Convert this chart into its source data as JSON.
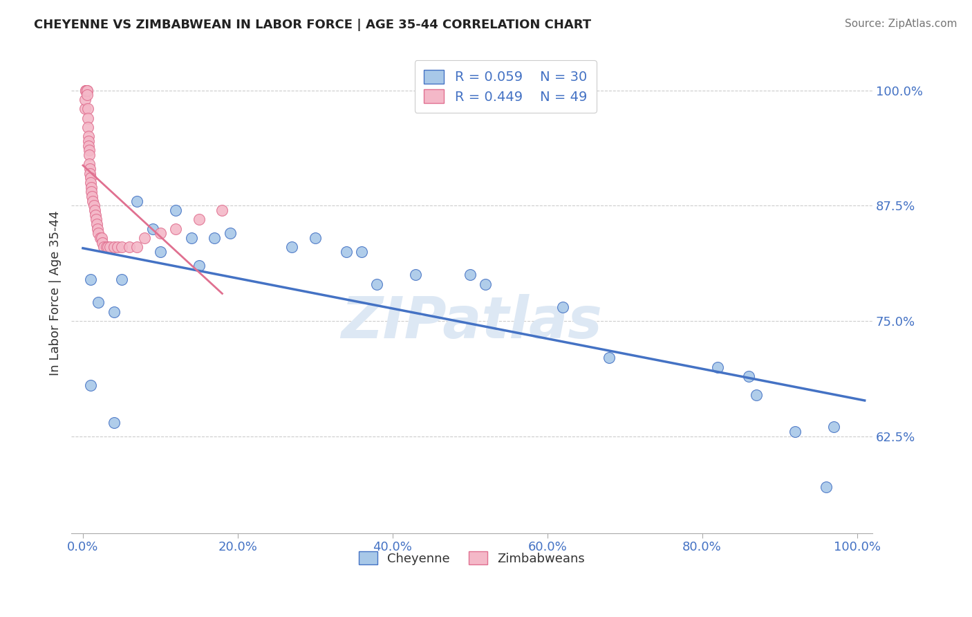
{
  "title": "CHEYENNE VS ZIMBABWEAN IN LABOR FORCE | AGE 35-44 CORRELATION CHART",
  "source": "Source: ZipAtlas.com",
  "ylabel": "In Labor Force | Age 35-44",
  "legend_cheyenne_R": "R = 0.059",
  "legend_cheyenne_N": "N = 30",
  "legend_zimbabwean_R": "R = 0.449",
  "legend_zimbabwean_N": "N = 49",
  "cheyenne_color": "#a8c8e8",
  "zimbabwean_color": "#f4b8c8",
  "cheyenne_line_color": "#4472c4",
  "zimbabwean_line_color": "#e07090",
  "legend_text_color": "#4472c4",
  "watermark": "ZIPatlas",
  "watermark_color": "#dde8f4",
  "cheyenne_x": [
    0.01,
    0.02,
    0.04,
    0.05,
    0.07,
    0.09,
    0.1,
    0.12,
    0.14,
    0.15,
    0.17,
    0.19,
    0.27,
    0.3,
    0.34,
    0.36,
    0.38,
    0.43,
    0.5,
    0.52,
    0.62,
    0.68,
    0.82,
    0.86,
    0.87,
    0.92,
    0.96,
    0.97,
    0.01,
    0.04
  ],
  "cheyenne_y": [
    0.795,
    0.77,
    0.76,
    0.795,
    0.88,
    0.85,
    0.825,
    0.87,
    0.84,
    0.81,
    0.84,
    0.845,
    0.83,
    0.84,
    0.825,
    0.825,
    0.79,
    0.8,
    0.8,
    0.79,
    0.765,
    0.71,
    0.7,
    0.69,
    0.67,
    0.63,
    0.57,
    0.635,
    0.68,
    0.64
  ],
  "zimbabwean_x": [
    0.003,
    0.003,
    0.004,
    0.004,
    0.004,
    0.005,
    0.005,
    0.005,
    0.006,
    0.006,
    0.006,
    0.007,
    0.007,
    0.007,
    0.008,
    0.008,
    0.008,
    0.009,
    0.009,
    0.01,
    0.01,
    0.011,
    0.011,
    0.012,
    0.013,
    0.014,
    0.015,
    0.016,
    0.017,
    0.018,
    0.019,
    0.02,
    0.022,
    0.024,
    0.025,
    0.027,
    0.03,
    0.032,
    0.035,
    0.04,
    0.045,
    0.05,
    0.06,
    0.07,
    0.08,
    0.1,
    0.12,
    0.15,
    0.18
  ],
  "zimbabwean_y": [
    0.98,
    0.99,
    1.0,
    1.0,
    1.0,
    1.0,
    1.0,
    0.995,
    0.98,
    0.97,
    0.96,
    0.95,
    0.945,
    0.94,
    0.935,
    0.93,
    0.92,
    0.915,
    0.91,
    0.905,
    0.9,
    0.895,
    0.89,
    0.885,
    0.88,
    0.875,
    0.87,
    0.865,
    0.86,
    0.855,
    0.85,
    0.845,
    0.84,
    0.84,
    0.835,
    0.83,
    0.83,
    0.83,
    0.83,
    0.83,
    0.83,
    0.83,
    0.83,
    0.83,
    0.84,
    0.845,
    0.85,
    0.86,
    0.87
  ],
  "xlim": [
    -0.015,
    1.02
  ],
  "ylim": [
    0.52,
    1.04
  ],
  "y_ticks": [
    0.625,
    0.75,
    0.875,
    1.0
  ],
  "y_tick_labels": [
    "62.5%",
    "75.0%",
    "87.5%",
    "100.0%"
  ],
  "x_ticks": [
    0.0,
    0.2,
    0.4,
    0.6,
    0.8,
    1.0
  ],
  "x_tick_labels": [
    "0.0%",
    "20.0%",
    "40.0%",
    "60.0%",
    "80.0%",
    "100.0%"
  ],
  "background_color": "#ffffff",
  "grid_color": "#cccccc",
  "title_color": "#222222",
  "axis_color": "#4472c4"
}
